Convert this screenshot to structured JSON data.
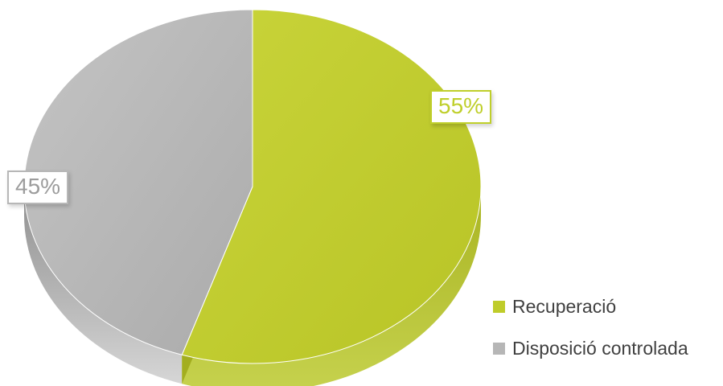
{
  "chart_data": {
    "type": "pie",
    "style": "3d",
    "title": "",
    "categories": [
      "Recuperació",
      "Disposició controlada"
    ],
    "values": [
      55,
      45
    ],
    "data_labels": [
      "55%",
      "45%"
    ],
    "colors": [
      "#bfcc2a",
      "#b6b6b6"
    ],
    "legend": {
      "position": "bottom-right",
      "entries": [
        "Recuperació",
        "Disposició controlada"
      ]
    }
  }
}
